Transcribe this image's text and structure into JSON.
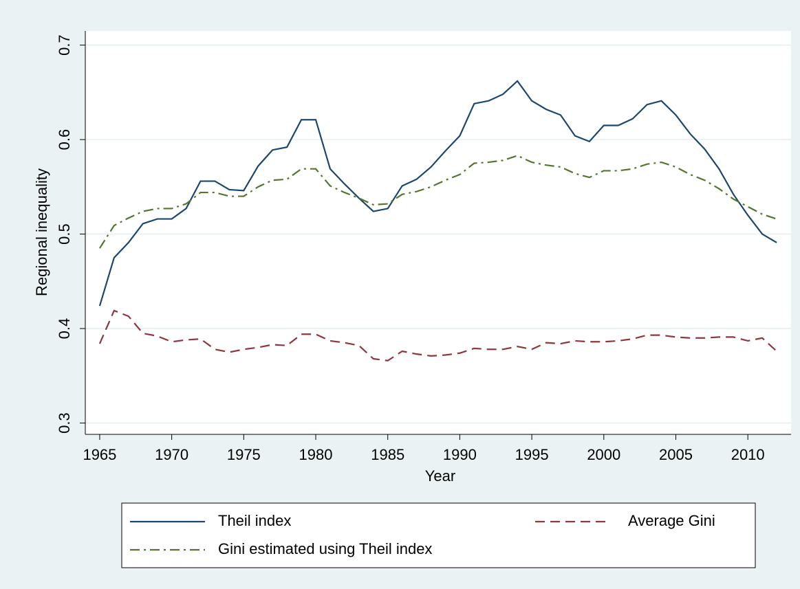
{
  "chart_data": {
    "type": "line",
    "x_label": "Year",
    "y_label": "Regional inequality",
    "x": [
      1965,
      1966,
      1967,
      1968,
      1969,
      1970,
      1971,
      1972,
      1973,
      1974,
      1975,
      1976,
      1977,
      1978,
      1979,
      1980,
      1981,
      1982,
      1983,
      1984,
      1985,
      1986,
      1987,
      1988,
      1989,
      1990,
      1991,
      1992,
      1993,
      1994,
      1995,
      1996,
      1997,
      1998,
      1999,
      2000,
      2001,
      2002,
      2003,
      2004,
      2005,
      2006,
      2007,
      2008,
      2009,
      2010,
      2011,
      2012
    ],
    "series": [
      {
        "name": "Theil index",
        "color": "#1a476f",
        "linestyle": "solid",
        "values": [
          0.424,
          0.475,
          0.491,
          0.511,
          0.516,
          0.516,
          0.527,
          0.556,
          0.556,
          0.547,
          0.546,
          0.572,
          0.589,
          0.592,
          0.621,
          0.621,
          0.569,
          0.553,
          0.538,
          0.524,
          0.527,
          0.551,
          0.558,
          0.571,
          0.588,
          0.604,
          0.638,
          0.641,
          0.648,
          0.662,
          0.641,
          0.632,
          0.626,
          0.604,
          0.598,
          0.615,
          0.615,
          0.622,
          0.637,
          0.641,
          0.626,
          0.606,
          0.59,
          0.569,
          0.542,
          0.52,
          0.5,
          0.491
        ]
      },
      {
        "name": "Average Gini",
        "color": "#90353b",
        "linestyle": "dash",
        "values": [
          0.384,
          0.419,
          0.413,
          0.395,
          0.392,
          0.386,
          0.388,
          0.389,
          0.378,
          0.375,
          0.378,
          0.38,
          0.383,
          0.382,
          0.394,
          0.394,
          0.387,
          0.385,
          0.382,
          0.368,
          0.366,
          0.376,
          0.373,
          0.371,
          0.372,
          0.374,
          0.379,
          0.378,
          0.378,
          0.381,
          0.378,
          0.385,
          0.384,
          0.387,
          0.386,
          0.386,
          0.387,
          0.389,
          0.393,
          0.393,
          0.391,
          0.39,
          0.39,
          0.391,
          0.391,
          0.387,
          0.39,
          0.376
        ]
      },
      {
        "name": "Gini estimated using Theil index",
        "color": "#55752f",
        "linestyle": "dashdot",
        "values": [
          0.485,
          0.509,
          0.517,
          0.524,
          0.527,
          0.527,
          0.532,
          0.544,
          0.544,
          0.54,
          0.54,
          0.55,
          0.557,
          0.558,
          0.569,
          0.569,
          0.551,
          0.544,
          0.538,
          0.531,
          0.532,
          0.542,
          0.545,
          0.55,
          0.557,
          0.563,
          0.575,
          0.576,
          0.578,
          0.583,
          0.576,
          0.573,
          0.571,
          0.564,
          0.56,
          0.567,
          0.567,
          0.569,
          0.574,
          0.576,
          0.571,
          0.563,
          0.557,
          0.548,
          0.537,
          0.529,
          0.521,
          0.516
        ]
      }
    ],
    "xlim": [
      1964,
      2013
    ],
    "xticks": [
      1965,
      1970,
      1975,
      1980,
      1985,
      1990,
      1995,
      2000,
      2005,
      2010
    ],
    "ylim": [
      0.288,
      0.715
    ],
    "yticks": [
      0.3,
      0.4,
      0.5,
      0.6,
      0.7
    ],
    "grid": true,
    "legend": "bottom"
  }
}
